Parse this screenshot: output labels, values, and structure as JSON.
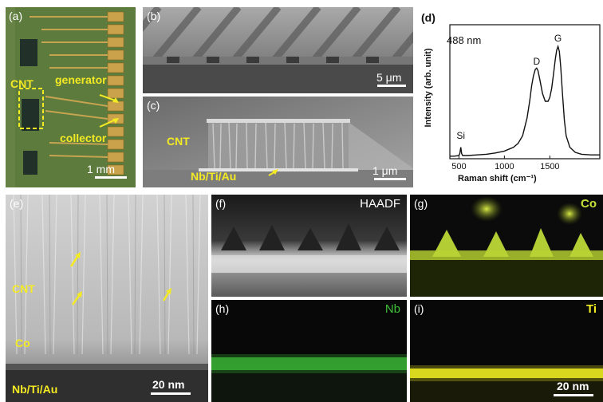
{
  "panels": {
    "a": {
      "label": "(a)",
      "cnt": "CNT",
      "generator": "generator",
      "collector": "collector",
      "scale": "1 mm"
    },
    "b": {
      "label": "(b)",
      "scale": "5 μm"
    },
    "c": {
      "label": "(c)",
      "cnt": "CNT",
      "stack": "Nb/Ti/Au",
      "scale": "1 μm"
    },
    "d": {
      "label": "(d)",
      "wavelength": "488 nm"
    },
    "e": {
      "label": "(e)",
      "cnt": "CNT",
      "co": "Co",
      "stack": "Nb/Ti/Au",
      "scale": "20 nm"
    },
    "f": {
      "label": "(f)",
      "tag": "HAADF"
    },
    "g": {
      "label": "(g)",
      "tag": "Co"
    },
    "h": {
      "label": "(h)",
      "tag": "Nb"
    },
    "i": {
      "label": "(i)",
      "tag": "Ti",
      "scale": "20 nm"
    }
  },
  "colors": {
    "label_yellow": "#f3ea24",
    "nb_green": "#3fbf3a",
    "co_green": "#c6e23a",
    "ti_yellow": "#f2ee24"
  },
  "chart_data": {
    "type": "line",
    "title": "",
    "xlabel": "Raman shift (cm⁻¹)",
    "ylabel": "Intensity (arb. unit)",
    "xticks": [
      "500",
      "1000",
      "1500"
    ],
    "xlim": [
      400,
      2050
    ],
    "ylim": [
      0,
      1.05
    ],
    "peak_labels": [
      {
        "text": "Si",
        "x": 520,
        "y": 0.12
      },
      {
        "text": "D",
        "x": 1355,
        "y": 0.7
      },
      {
        "text": "G",
        "x": 1590,
        "y": 0.88
      }
    ],
    "series": [
      {
        "x": [
          400,
          450,
          500,
          510,
          520,
          530,
          540,
          600,
          700,
          800,
          900,
          1000,
          1100,
          1150,
          1200,
          1250,
          1280,
          1300,
          1320,
          1340,
          1355,
          1370,
          1390,
          1420,
          1450,
          1480,
          1500,
          1520,
          1540,
          1560,
          1575,
          1590,
          1605,
          1620,
          1640,
          1660,
          1680,
          1720,
          1780,
          1850,
          1950,
          2050
        ],
        "y": [
          0.02,
          0.02,
          0.025,
          0.04,
          0.09,
          0.04,
          0.025,
          0.025,
          0.03,
          0.035,
          0.045,
          0.06,
          0.09,
          0.12,
          0.18,
          0.32,
          0.46,
          0.57,
          0.65,
          0.7,
          0.71,
          0.69,
          0.62,
          0.51,
          0.45,
          0.45,
          0.48,
          0.55,
          0.66,
          0.78,
          0.85,
          0.88,
          0.84,
          0.72,
          0.5,
          0.3,
          0.18,
          0.09,
          0.05,
          0.035,
          0.03,
          0.03
        ]
      }
    ]
  }
}
